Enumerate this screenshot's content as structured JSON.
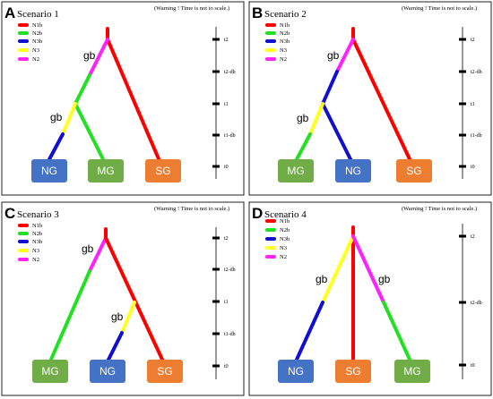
{
  "warning": "(Warning ! Time is not to scale.)",
  "colors": {
    "N1b": "#ff0000",
    "N2b": "#22e022",
    "N3b": "#1010d0",
    "N3": "#ffff22",
    "N2": "#ff22ff",
    "NG": "#4472c4",
    "MG": "#70ad47",
    "SG": "#ed7d31"
  },
  "legend": [
    "N1b",
    "N2b",
    "N3b",
    "N3",
    "N2"
  ],
  "panels": [
    {
      "letter": "A",
      "title": "Scenario 1",
      "times": [
        "t2",
        "t2-db",
        "t1",
        "t1-db",
        "t0"
      ],
      "nodes": [
        "NG",
        "MG",
        "SG"
      ],
      "gb_labels": [
        "gb",
        "gb"
      ]
    },
    {
      "letter": "B",
      "title": "Scenario 2",
      "times": [
        "t2",
        "t2-db",
        "t1",
        "t1-db",
        "t0"
      ],
      "nodes": [
        "MG",
        "NG",
        "SG"
      ],
      "gb_labels": [
        "gb",
        "gb"
      ]
    },
    {
      "letter": "C",
      "title": "Scenario 3",
      "times": [
        "t2",
        "t2-db",
        "t1",
        "t1-db",
        "t0"
      ],
      "nodes": [
        "MG",
        "NG",
        "SG"
      ],
      "gb_labels": [
        "gb",
        "gb"
      ]
    },
    {
      "letter": "D",
      "title": "Scenario 4",
      "times": [
        "t2",
        "t2-db",
        "t0"
      ],
      "nodes": [
        "NG",
        "SG",
        "MG"
      ],
      "gb_labels": [
        "gb",
        "gb"
      ]
    }
  ]
}
